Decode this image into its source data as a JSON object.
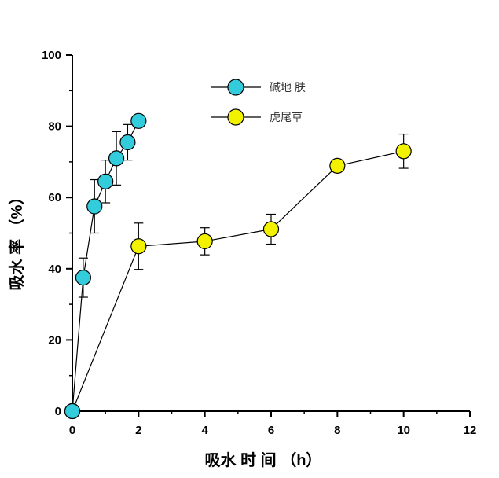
{
  "chart_data": {
    "type": "line",
    "xlabel": "吸水 时 间 （h）",
    "ylabel": "吸水 率 （%）",
    "xlim": [
      0,
      12
    ],
    "ylim": [
      0,
      100
    ],
    "x_ticks": [
      0,
      2,
      4,
      6,
      8,
      10,
      12
    ],
    "y_ticks": [
      0,
      20,
      40,
      60,
      80,
      100
    ],
    "grid": false,
    "legend_position": "top-center",
    "series": [
      {
        "name": "碱地 肤",
        "color": "#33ccdd",
        "x": [
          0,
          0.33,
          0.67,
          1.0,
          1.33,
          1.67,
          2.0
        ],
        "y": [
          0,
          37.5,
          57.5,
          64.5,
          71,
          75.5,
          81.5
        ],
        "err": [
          0,
          5.5,
          7.5,
          6,
          7.5,
          5,
          0
        ]
      },
      {
        "name": "虎尾草",
        "color": "#f2f200",
        "x": [
          0,
          2,
          4,
          6,
          8,
          10
        ],
        "y": [
          0,
          46.3,
          47.7,
          51.1,
          68.9,
          73.0
        ],
        "err": [
          0,
          6.5,
          3.8,
          4.2,
          0,
          4.8
        ]
      }
    ]
  }
}
